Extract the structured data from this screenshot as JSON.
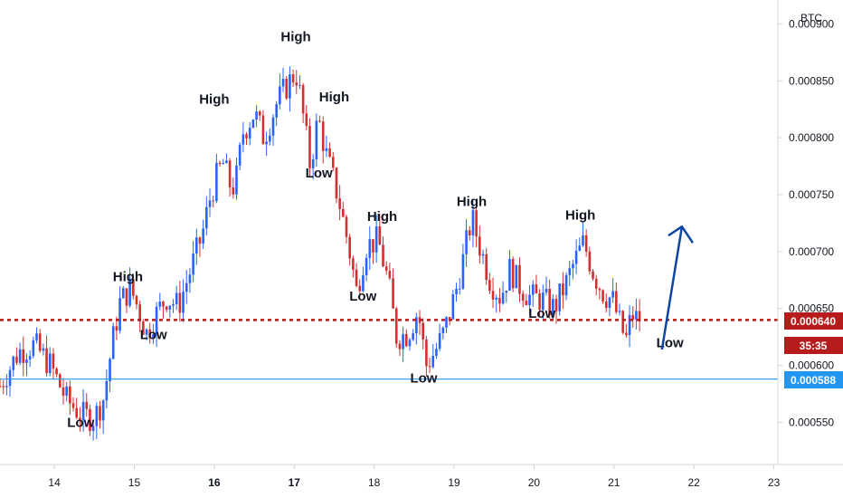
{
  "chart_data": {
    "type": "candlestick",
    "symbol_unit": "BTC",
    "ylim": [
      0.000513,
      0.000921
    ],
    "y_ticks": [
      "0.000550",
      "0.000600",
      "0.000650",
      "0.000700",
      "0.000750",
      "0.000800",
      "0.000850",
      "0.000900"
    ],
    "x_ticks": [
      {
        "label": "14",
        "day": 14,
        "bold": false
      },
      {
        "label": "15",
        "day": 15,
        "bold": false
      },
      {
        "label": "16",
        "day": 16,
        "bold": true
      },
      {
        "label": "17",
        "day": 17,
        "bold": true
      },
      {
        "label": "18",
        "day": 18,
        "bold": false
      },
      {
        "label": "19",
        "day": 19,
        "bold": false
      },
      {
        "label": "20",
        "day": 20,
        "bold": false
      },
      {
        "label": "21",
        "day": 21,
        "bold": false
      },
      {
        "label": "22",
        "day": 22,
        "bold": false
      },
      {
        "label": "23",
        "day": 23,
        "bold": false
      }
    ],
    "xlim_days": [
      13.32,
      23.05
    ],
    "price_anchors": [
      [
        13.32,
        0.000582
      ],
      [
        13.55,
        0.000612
      ],
      [
        13.75,
        0.000618
      ],
      [
        13.95,
        0.0006
      ],
      [
        14.15,
        0.00057
      ],
      [
        14.35,
        0.000556
      ],
      [
        14.5,
        0.000554
      ],
      [
        14.62,
        0.000572
      ],
      [
        14.72,
        0.000618
      ],
      [
        14.82,
        0.000655
      ],
      [
        14.95,
        0.000668
      ],
      [
        15.05,
        0.00065
      ],
      [
        15.15,
        0.000628
      ],
      [
        15.25,
        0.000642
      ],
      [
        15.4,
        0.00066
      ],
      [
        15.55,
        0.000652
      ],
      [
        15.7,
        0.000683
      ],
      [
        15.85,
        0.000715
      ],
      [
        15.95,
        0.000748
      ],
      [
        16.05,
        0.00077
      ],
      [
        16.12,
        0.000778
      ],
      [
        16.18,
        0.00076
      ],
      [
        16.26,
        0.000756
      ],
      [
        16.36,
        0.000805
      ],
      [
        16.5,
        0.000822
      ],
      [
        16.62,
        0.0008
      ],
      [
        16.78,
        0.00083
      ],
      [
        16.9,
        0.000845
      ],
      [
        17.02,
        0.000858
      ],
      [
        17.08,
        0.000835
      ],
      [
        17.2,
        0.000775
      ],
      [
        17.3,
        0.000818
      ],
      [
        17.4,
        0.000785
      ],
      [
        17.55,
        0.000748
      ],
      [
        17.68,
        0.000705
      ],
      [
        17.78,
        0.000665
      ],
      [
        17.9,
        0.000705
      ],
      [
        18.05,
        0.00071
      ],
      [
        18.18,
        0.000672
      ],
      [
        18.28,
        0.000625
      ],
      [
        18.42,
        0.000628
      ],
      [
        18.55,
        0.000648
      ],
      [
        18.65,
        0.0006
      ],
      [
        18.76,
        0.000612
      ],
      [
        18.88,
        0.00063
      ],
      [
        19.02,
        0.000665
      ],
      [
        19.12,
        0.000695
      ],
      [
        19.22,
        0.00073
      ],
      [
        19.32,
        0.000705
      ],
      [
        19.45,
        0.000675
      ],
      [
        19.58,
        0.00066
      ],
      [
        19.7,
        0.000685
      ],
      [
        19.82,
        0.00067
      ],
      [
        19.95,
        0.00066
      ],
      [
        20.1,
        0.000658
      ],
      [
        20.25,
        0.00065
      ],
      [
        20.4,
        0.000672
      ],
      [
        20.5,
        0.00069
      ],
      [
        20.62,
        0.000708
      ],
      [
        20.75,
        0.00068
      ],
      [
        20.88,
        0.000662
      ],
      [
        20.98,
        0.000658
      ],
      [
        21.08,
        0.000635
      ],
      [
        21.15,
        0.000622
      ],
      [
        21.22,
        0.000645
      ],
      [
        21.3,
        0.00064
      ],
      [
        21.36,
        0.000644
      ]
    ],
    "annotations": [
      {
        "text": "Low",
        "day": 14.33,
        "price": 0.000546
      },
      {
        "text": "High",
        "day": 14.92,
        "price": 0.000674
      },
      {
        "text": "Low",
        "day": 15.24,
        "price": 0.000623
      },
      {
        "text": "High",
        "day": 16.0,
        "price": 0.00083
      },
      {
        "text": "High",
        "day": 17.02,
        "price": 0.000885
      },
      {
        "text": "High",
        "day": 17.5,
        "price": 0.000832
      },
      {
        "text": "Low",
        "day": 17.31,
        "price": 0.000765
      },
      {
        "text": "High",
        "day": 18.1,
        "price": 0.000727
      },
      {
        "text": "Low",
        "day": 17.86,
        "price": 0.000657
      },
      {
        "text": "Low",
        "day": 18.62,
        "price": 0.000585
      },
      {
        "text": "High",
        "day": 19.22,
        "price": 0.00074
      },
      {
        "text": "Low",
        "day": 20.1,
        "price": 0.000642
      },
      {
        "text": "High",
        "day": 20.58,
        "price": 0.000728
      },
      {
        "text": "Low",
        "day": 21.7,
        "price": 0.000616
      }
    ],
    "current_price_line": {
      "value": 0.00064,
      "label": "0.000640",
      "countdown": "35:35",
      "color": "#b71c1c"
    },
    "support_line": {
      "value": 0.000588,
      "label": "0.000588",
      "color": "#2196f3"
    },
    "forecast_arrow": {
      "from": [
        21.6,
        0.000614
      ],
      "to": [
        21.85,
        0.000722
      ],
      "color": "#0d47a1"
    },
    "colors": {
      "up": "#2962ff",
      "down": "#d32f2f",
      "axis_text": "#131722"
    }
  }
}
